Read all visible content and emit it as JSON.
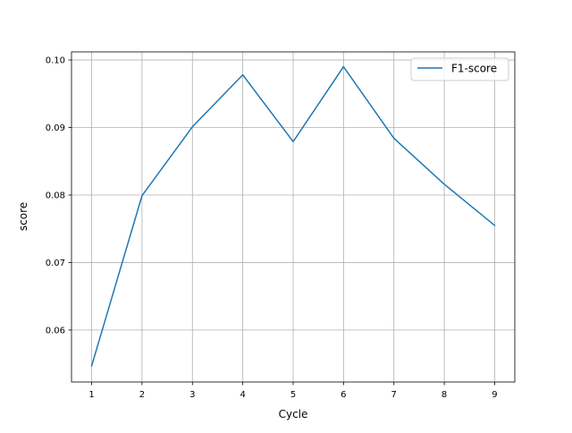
{
  "chart_data": {
    "type": "line",
    "title": "",
    "xlabel": "Cycle",
    "ylabel": "score",
    "x": [
      1,
      2,
      3,
      4,
      5,
      6,
      7,
      8,
      9
    ],
    "series": [
      {
        "name": "F1-score",
        "values": [
          0.0547,
          0.0799,
          0.0901,
          0.0978,
          0.0879,
          0.099,
          0.0884,
          0.0816,
          0.0755
        ],
        "color": "#1f77b4"
      }
    ],
    "xlim": [
      0.6,
      9.4
    ],
    "ylim": [
      0.0523,
      0.1012
    ],
    "xticks": [
      1,
      2,
      3,
      4,
      5,
      6,
      7,
      8,
      9
    ],
    "xtick_labels": [
      "1",
      "2",
      "3",
      "4",
      "5",
      "6",
      "7",
      "8",
      "9"
    ],
    "yticks": [
      0.06,
      0.07,
      0.08,
      0.09,
      0.1
    ],
    "ytick_labels": [
      "0.06",
      "0.07",
      "0.08",
      "0.09",
      "0.10"
    ],
    "grid": true,
    "legend_position": "top-right"
  }
}
